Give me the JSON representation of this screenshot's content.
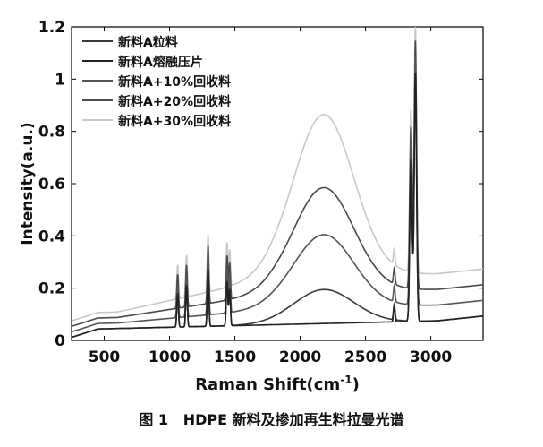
{
  "chart_data": {
    "type": "line",
    "xlabel": "Raman Shift(cm",
    "xlabel_sup": "-1",
    "xlabel_tail": ")",
    "ylabel": "Intensity(a.u.)",
    "xlim": [
      250,
      3400
    ],
    "ylim": [
      0,
      1.2
    ],
    "xticks": [
      500,
      1000,
      1500,
      2000,
      2500,
      3000
    ],
    "xtick_labels": [
      "500",
      "1000",
      "1500",
      "2000",
      "2500",
      "3000"
    ],
    "yticks": [
      0,
      0.2,
      0.4,
      0.6,
      0.8,
      1,
      1.2
    ],
    "ytick_labels": [
      "0",
      "0.2",
      "0.4",
      "0.6",
      "0.8",
      "1",
      "1.2"
    ],
    "legend_position": "top-left",
    "series": [
      {
        "name": "新料A粒料",
        "color": "#3a3a3a",
        "offset": 0.0,
        "broad_2180": 0.13
      },
      {
        "name": "新料A熔融压片",
        "color": "#222222",
        "offset": 0.0,
        "broad_2180": 0.0
      },
      {
        "name": "新料A+10%回收料",
        "color": "#555555",
        "offset": 0.06,
        "broad_2180": 0.28
      },
      {
        "name": "新料A+20%回收料",
        "color": "#4a4a4a",
        "offset": 0.12,
        "broad_2180": 0.4
      },
      {
        "name": "新料A+30%回收料",
        "color": "#c8c8c8",
        "offset": 0.18,
        "broad_2180": 0.62
      }
    ],
    "peaks_cm-1": [
      {
        "x": 1062,
        "height": 0.13
      },
      {
        "x": 1130,
        "height": 0.16
      },
      {
        "x": 1295,
        "height": 0.22
      },
      {
        "x": 1440,
        "height": 0.17
      },
      {
        "x": 1460,
        "height": 0.14
      },
      {
        "x": 2720,
        "height": 0.06
      },
      {
        "x": 2848,
        "height": 0.62
      },
      {
        "x": 2882,
        "height": 0.95
      }
    ]
  },
  "caption": "图 1   HDPE 新料及掺加再生料拉曼光谱"
}
